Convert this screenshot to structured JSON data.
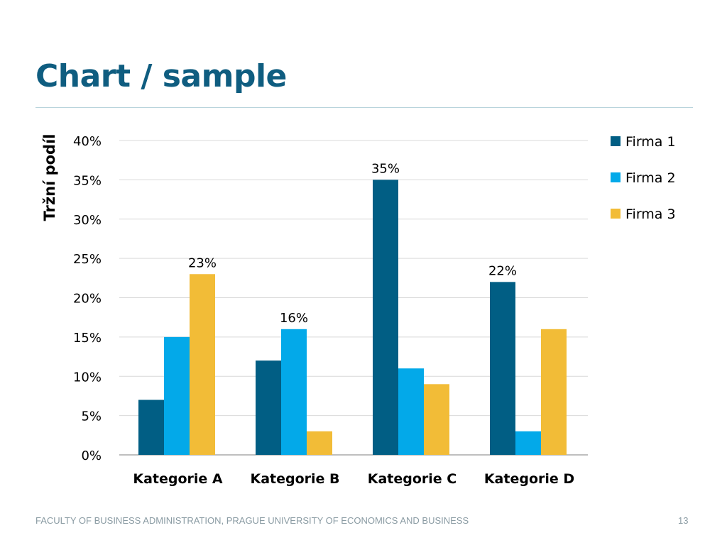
{
  "slide": {
    "title": "Chart / sample",
    "footer": "FACULTY OF BUSINESS ADMINISTRATION, PRAGUE UNIVERSITY OF ECONOMICS AND BUSINESS",
    "page_number": "13"
  },
  "chart_data": {
    "type": "bar",
    "title": "",
    "xlabel": "",
    "ylabel": "Tržní podíl",
    "categories": [
      "Kategorie A",
      "Kategorie B",
      "Kategorie C",
      "Kategorie D"
    ],
    "series": [
      {
        "name": "Firma 1",
        "color": "#015e84",
        "values": [
          7,
          12,
          35,
          22
        ]
      },
      {
        "name": "Firma 2",
        "color": "#03a9e9",
        "values": [
          15,
          16,
          11,
          3
        ]
      },
      {
        "name": "Firma 3",
        "color": "#f2bc37",
        "values": [
          23,
          3,
          9,
          16
        ]
      }
    ],
    "ylim": [
      0,
      40
    ],
    "y_ticks": [
      "0%",
      "5%",
      "10%",
      "15%",
      "20%",
      "25%",
      "30%",
      "35%",
      "40%"
    ],
    "data_labels": [
      {
        "series": 2,
        "category": 0,
        "text": "23%"
      },
      {
        "series": 1,
        "category": 1,
        "text": "16%"
      },
      {
        "series": 0,
        "category": 2,
        "text": "35%"
      },
      {
        "series": 0,
        "category": 3,
        "text": "22%"
      }
    ],
    "grid": true,
    "legend_position": "right"
  }
}
